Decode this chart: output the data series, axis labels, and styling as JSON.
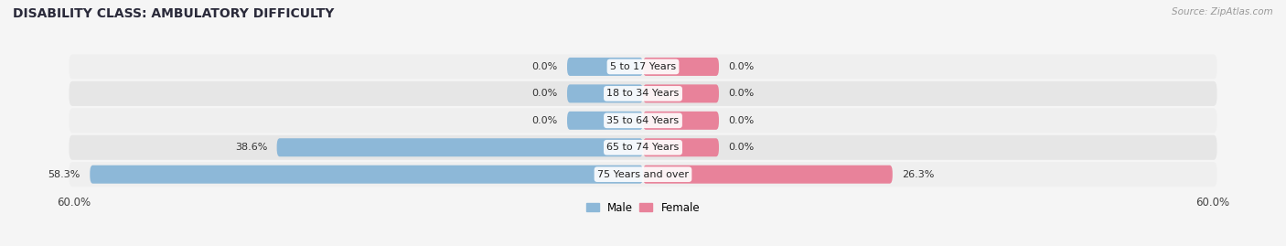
{
  "title": "DISABILITY CLASS: AMBULATORY DIFFICULTY",
  "source_text": "Source: ZipAtlas.com",
  "categories": [
    "5 to 17 Years",
    "18 to 34 Years",
    "35 to 64 Years",
    "65 to 74 Years",
    "75 Years and over"
  ],
  "male_values": [
    0.0,
    0.0,
    0.0,
    38.6,
    58.3
  ],
  "female_values": [
    0.0,
    0.0,
    0.0,
    0.0,
    26.3
  ],
  "axis_max": 60.0,
  "stub_size": 8.0,
  "male_color": "#8db8d8",
  "female_color": "#e8829a",
  "row_bg_colors": [
    "#efefef",
    "#e6e6e6"
  ],
  "title_color": "#2a2a3a",
  "title_fontsize": 10,
  "legend_male_label": "Male",
  "legend_female_label": "Female",
  "x_tick_label_left": "60.0%",
  "x_tick_label_right": "60.0%",
  "value_fontsize": 8,
  "cat_fontsize": 8,
  "bg_color": "#f5f5f5"
}
